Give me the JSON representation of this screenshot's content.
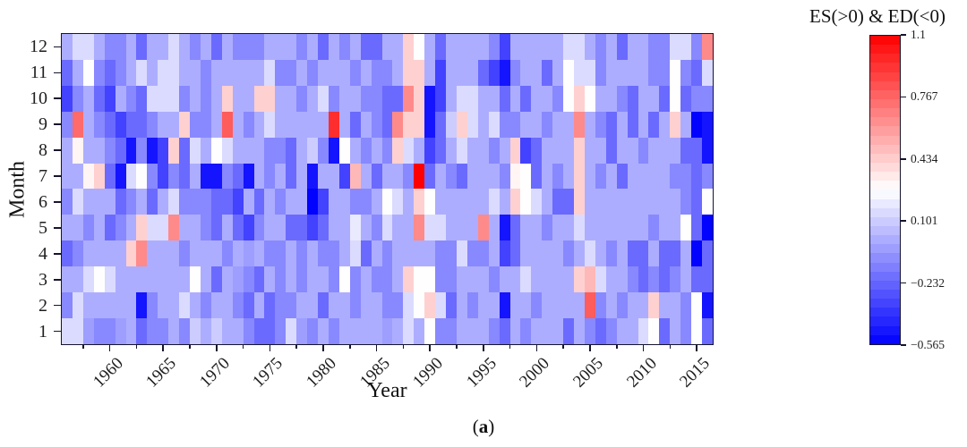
{
  "figure": {
    "caption_open": "(",
    "caption_letter": "a",
    "caption_close": ")"
  },
  "chart_data": {
    "type": "heatmap",
    "title": "",
    "xlabel": "Year",
    "ylabel": "Month",
    "x_years": {
      "start": 1956,
      "end": 2016
    },
    "x_major_ticks": [
      1960,
      1965,
      1970,
      1975,
      1980,
      1985,
      1990,
      1995,
      2000,
      2005,
      2010,
      2015
    ],
    "x_minor_ticks": [
      1957.5,
      1962.5,
      1967.5,
      1972.5,
      1977.5,
      1982.5,
      1987.5,
      1992.5,
      1997.5,
      2002.5,
      2007.5,
      2012.5
    ],
    "y_months": [
      1,
      2,
      3,
      4,
      5,
      6,
      7,
      8,
      9,
      10,
      11,
      12
    ],
    "grid": false,
    "colorbar": {
      "title": "ES(>0) & ED(<0)",
      "position": "right",
      "tick_labels": [
        "1.1",
        "0.767",
        "0.434",
        "0.101",
        "−0.232",
        "−0.565"
      ],
      "tick_values": [
        1.1,
        0.767,
        0.434,
        0.101,
        -0.232,
        -0.565
      ],
      "vmin": -0.565,
      "vmax": 1.1,
      "segments": 34,
      "color_low": "#0000ff",
      "color_mid": "#ffffff",
      "color_high": "#ff0000"
    },
    "values_by_month": {
      "m1": [
        0.15,
        0.15,
        -0.05,
        -0.12,
        -0.12,
        -0.05,
        0,
        -0.22,
        -0.12,
        -0.12,
        0,
        -0.12,
        0.1,
        0,
        0.1,
        0,
        0,
        -0.12,
        -0.22,
        -0.22,
        -0.12,
        0.15,
        -0.05,
        -0.12,
        0,
        -0.12,
        0,
        0,
        0,
        0,
        -0.05,
        0,
        0.15,
        0,
        0.27,
        -0.12,
        -0.12,
        0,
        0,
        0,
        -0.12,
        -0.22,
        0,
        -0.12,
        0,
        0,
        0,
        -0.22,
        0,
        -0.12,
        -0.22,
        -0.12,
        0,
        0,
        0.15,
        0.27,
        -0.22,
        0,
        -0.12,
        0.27,
        -0.22
      ],
      "m2": [
        -0.12,
        0.15,
        0,
        0,
        0,
        0,
        0,
        -0.5,
        -0.12,
        0,
        0,
        0.15,
        0,
        -0.12,
        0,
        0,
        -0.12,
        -0.22,
        0,
        -0.22,
        -0.12,
        -0.12,
        0,
        0,
        -0.22,
        0,
        0,
        -0.12,
        0,
        0,
        -0.12,
        -0.12,
        0.15,
        0.27,
        0.42,
        0.15,
        -0.22,
        0,
        -0.12,
        0,
        0,
        -0.5,
        0,
        0,
        -0.12,
        0,
        0,
        0,
        0,
        0.8,
        -0.12,
        0,
        -0.12,
        0,
        0,
        0.42,
        0,
        0,
        -0.12,
        0.27,
        -0.5
      ],
      "m3": [
        0,
        0,
        0.15,
        0.27,
        0.15,
        0,
        0,
        0,
        0,
        0,
        0,
        0,
        0.27,
        0,
        -0.22,
        0,
        -0.05,
        -0.12,
        -0.22,
        0,
        -0.12,
        0,
        -0.12,
        0,
        0,
        -0.12,
        0.27,
        -0.12,
        0,
        -0.12,
        -0.12,
        0,
        0.42,
        0.27,
        0.27,
        -0.12,
        -0.12,
        0,
        0,
        0,
        -0.12,
        0,
        0,
        0.15,
        0,
        0,
        0,
        0,
        0.42,
        0.5,
        0.15,
        0,
        0,
        -0.12,
        -0.22,
        -0.12,
        -0.22,
        -0.12,
        0,
        -0.22,
        -0.22
      ],
      "m4": [
        -0.22,
        -0.12,
        0,
        0,
        0,
        0,
        0.42,
        0.65,
        0,
        0,
        0,
        -0.12,
        0,
        0,
        0,
        -0.12,
        0,
        -0.05,
        0,
        -0.12,
        -0.12,
        0,
        -0.12,
        0,
        -0.12,
        -0.12,
        0,
        0.15,
        -0.22,
        0,
        -0.12,
        0,
        0,
        0,
        0,
        -0.12,
        -0.12,
        0.15,
        -0.12,
        -0.12,
        0,
        -0.35,
        -0.22,
        0,
        0,
        0,
        0,
        -0.12,
        0,
        0.15,
        0,
        -0.12,
        0,
        -0.22,
        -0.22,
        0,
        -0.22,
        -0.22,
        0,
        -0.56,
        -0.22
      ],
      "m5": [
        0,
        0,
        -0.12,
        0,
        -0.22,
        -0.12,
        0,
        0.42,
        0.15,
        0.15,
        0.65,
        0,
        0,
        -0.12,
        -0.22,
        0,
        -0.22,
        -0.35,
        -0.12,
        0,
        0,
        -0.22,
        -0.22,
        -0.35,
        -0.22,
        0,
        0,
        0.2,
        0,
        -0.12,
        0.15,
        0,
        0,
        0.65,
        0.15,
        0.15,
        0,
        0,
        0,
        0.65,
        0,
        -0.5,
        -0.22,
        0,
        0,
        -0.12,
        0,
        0,
        0.15,
        0,
        0,
        0,
        0,
        0,
        0,
        -0.12,
        0,
        0,
        0.27,
        -0.22,
        -0.56
      ],
      "m6": [
        -0.12,
        0.15,
        0,
        0,
        0,
        -0.22,
        -0.12,
        0,
        -0.22,
        0,
        0.15,
        -0.12,
        -0.12,
        -0.12,
        -0.22,
        -0.22,
        -0.35,
        0,
        -0.22,
        0,
        -0.12,
        0,
        0,
        -0.56,
        -0.35,
        0,
        0,
        -0.12,
        -0.12,
        0,
        0.27,
        0.15,
        0,
        0.42,
        0.27,
        0,
        0,
        0,
        0,
        0,
        0.15,
        0,
        0.42,
        0.27,
        0.15,
        0,
        -0.22,
        -0.22,
        0.42,
        0,
        0,
        0,
        0,
        0,
        0,
        0,
        0,
        0,
        -0.12,
        -0.22,
        0.27
      ],
      "m7": [
        0,
        0,
        0.3,
        0.42,
        -0.22,
        -0.5,
        0.15,
        0.27,
        -0.12,
        -0.35,
        -0.12,
        -0.22,
        0,
        -0.5,
        -0.5,
        -0.12,
        -0.22,
        -0.5,
        0,
        -0.12,
        0,
        -0.22,
        0,
        -0.5,
        0,
        0,
        -0.35,
        0.5,
        0,
        -0.22,
        0,
        0,
        -0.12,
        1.1,
        -0.22,
        0,
        -0.12,
        -0.22,
        0,
        0,
        0,
        -0.12,
        0.3,
        0.27,
        -0.22,
        0,
        -0.12,
        0,
        0.42,
        0,
        -0.12,
        0,
        -0.22,
        0,
        0,
        0,
        0,
        -0.12,
        -0.12,
        -0.22,
        -0.12
      ],
      "m8": [
        0,
        0.3,
        0,
        0,
        -0.12,
        -0.22,
        -0.5,
        -0.12,
        -0.5,
        -0.35,
        0.42,
        -0.22,
        0.15,
        0,
        0.27,
        0.15,
        0,
        0,
        0,
        -0.12,
        -0.12,
        -0.22,
        0,
        0.1,
        -0.12,
        -0.5,
        0.27,
        0,
        -0.12,
        0,
        -0.12,
        0.42,
        0.15,
        0,
        -0.35,
        -0.22,
        0,
        0.15,
        0,
        0,
        -0.12,
        0,
        0.42,
        -0.35,
        -0.22,
        0,
        0,
        0,
        0.42,
        0,
        0,
        -0.22,
        0,
        0,
        -0.12,
        0,
        0,
        0,
        -0.22,
        -0.22,
        -0.5
      ],
      "m9": [
        -0.12,
        0.75,
        0,
        -0.12,
        -0.22,
        -0.35,
        -0.22,
        -0.22,
        -0.12,
        0,
        0,
        0.42,
        -0.12,
        -0.12,
        0,
        0.8,
        0,
        -0.12,
        0,
        0.15,
        0,
        0,
        0,
        0,
        0,
        0.95,
        0,
        -0.22,
        0,
        -0.12,
        -0.22,
        0.65,
        0.42,
        0.42,
        -0.5,
        -0.22,
        0.1,
        0.42,
        0.15,
        0,
        0.15,
        -0.12,
        -0.12,
        0,
        0,
        -0.12,
        0,
        0,
        0.65,
        0,
        -0.12,
        -0.22,
        0,
        -0.22,
        0,
        -0.22,
        0,
        0.42,
        0,
        -0.56,
        -0.5
      ],
      "m10": [
        -0.35,
        -0.12,
        0,
        -0.22,
        -0.35,
        0,
        -0.12,
        -0.22,
        0.15,
        0.15,
        0.15,
        -0.12,
        0,
        -0.12,
        0,
        0.42,
        0,
        0,
        0.42,
        0.42,
        0,
        0,
        -0.12,
        0,
        0.15,
        -0.12,
        0,
        0,
        -0.12,
        -0.12,
        -0.22,
        -0.22,
        0.65,
        0.42,
        -0.5,
        -0.35,
        0,
        0.15,
        0.15,
        0,
        0,
        -0.22,
        0,
        -0.22,
        0,
        0,
        -0.12,
        0.27,
        0.42,
        0.27,
        0,
        0,
        -0.12,
        -0.22,
        0,
        0,
        -0.22,
        0.27,
        -0.22,
        -0.12,
        -0.12
      ],
      "m11": [
        -0.22,
        0,
        0.27,
        -0.12,
        -0.22,
        -0.12,
        0,
        0.15,
        0,
        0.15,
        0.15,
        0,
        0,
        -0.12,
        0,
        0,
        0,
        0,
        0,
        0.15,
        -0.12,
        -0.12,
        0,
        -0.12,
        0,
        0,
        0,
        -0.12,
        0,
        -0.12,
        -0.12,
        0,
        0.42,
        0.42,
        0,
        -0.35,
        0,
        0,
        0,
        -0.22,
        -0.35,
        -0.5,
        -0.12,
        0,
        0,
        -0.22,
        0,
        0.27,
        0.15,
        0.15,
        -0.12,
        0,
        0,
        0,
        0,
        -0.12,
        -0.12,
        0.27,
        -0.12,
        -0.22,
        0.15
      ],
      "m12": [
        0,
        0.15,
        0.15,
        0,
        -0.12,
        -0.12,
        0,
        -0.22,
        0,
        0,
        0.15,
        0,
        -0.12,
        0,
        -0.22,
        0,
        -0.12,
        -0.12,
        -0.12,
        0,
        0,
        0,
        -0.12,
        0,
        -0.22,
        0,
        -0.12,
        0,
        -0.22,
        -0.22,
        0,
        0,
        0.42,
        0.27,
        0,
        -0.22,
        0,
        0,
        0,
        0,
        -0.12,
        -0.35,
        0,
        0,
        0,
        0,
        0,
        0.15,
        0.15,
        0,
        -0.12,
        0,
        -0.22,
        0,
        0,
        -0.12,
        -0.12,
        0.15,
        0.15,
        -0.12,
        0.65
      ]
    }
  }
}
